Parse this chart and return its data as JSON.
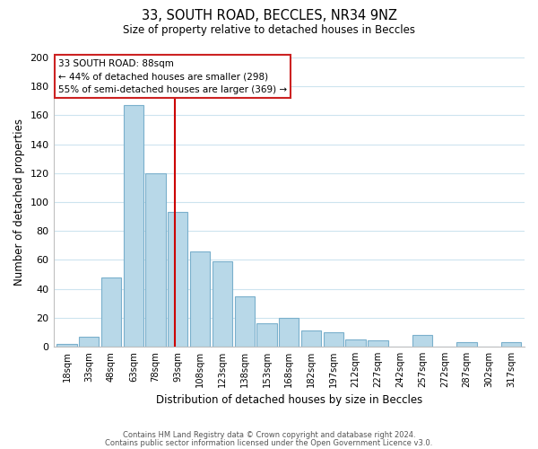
{
  "title": "33, SOUTH ROAD, BECCLES, NR34 9NZ",
  "subtitle": "Size of property relative to detached houses in Beccles",
  "xlabel": "Distribution of detached houses by size in Beccles",
  "ylabel": "Number of detached properties",
  "bar_labels": [
    "18sqm",
    "33sqm",
    "48sqm",
    "63sqm",
    "78sqm",
    "93sqm",
    "108sqm",
    "123sqm",
    "138sqm",
    "153sqm",
    "168sqm",
    "182sqm",
    "197sqm",
    "212sqm",
    "227sqm",
    "242sqm",
    "257sqm",
    "272sqm",
    "287sqm",
    "302sqm",
    "317sqm"
  ],
  "bar_values": [
    2,
    7,
    48,
    167,
    120,
    93,
    66,
    59,
    35,
    16,
    20,
    11,
    10,
    5,
    4,
    0,
    8,
    0,
    3,
    0,
    3
  ],
  "bar_color": "#b8d8e8",
  "bar_edgecolor": "#7ab0cc",
  "vline_x": 4.87,
  "vline_color": "#cc0000",
  "ylim": [
    0,
    200
  ],
  "yticks": [
    0,
    20,
    40,
    60,
    80,
    100,
    120,
    140,
    160,
    180,
    200
  ],
  "annotation_title": "33 SOUTH ROAD: 88sqm",
  "annotation_line2": "← 44% of detached houses are smaller (298)",
  "annotation_line3": "55% of semi-detached houses are larger (369) →",
  "footer_line1": "Contains HM Land Registry data © Crown copyright and database right 2024.",
  "footer_line2": "Contains public sector information licensed under the Open Government Licence v3.0.",
  "background_color": "#ffffff",
  "grid_color": "#cde4ef"
}
